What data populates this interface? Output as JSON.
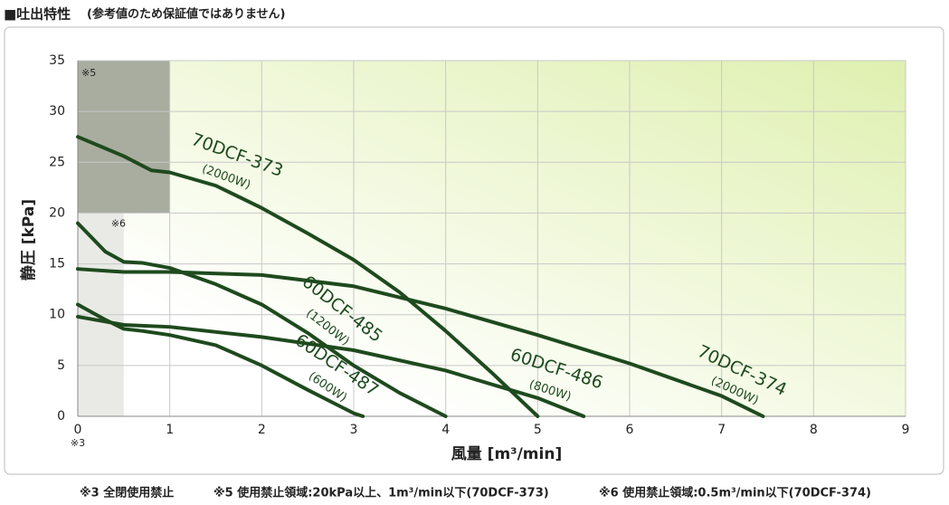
{
  "chart_data": {
    "type": "line",
    "title": "■吐出特性",
    "subtitle": "(参考値のため保証値ではありません)",
    "x_label": "風量 [m³/min]",
    "y_label": "静圧 [kPa]",
    "xlim": [
      0,
      9
    ],
    "xticks": [
      0,
      1,
      2,
      3,
      4,
      5,
      6,
      7,
      8,
      9
    ],
    "ylim": [
      0,
      35
    ],
    "yticks": [
      0,
      5,
      10,
      15,
      20,
      25,
      30,
      35
    ],
    "grid": true,
    "series": [
      {
        "name": "70DCF-373",
        "note": "(2000W)",
        "color": "#1e4a1e",
        "x": [
          0,
          0.5,
          0.8,
          1,
          1.5,
          2,
          2.5,
          3,
          3.5,
          4,
          4.5,
          5
        ],
        "values": [
          27.5,
          25.6,
          24.2,
          24,
          22.7,
          20.5,
          18,
          15.4,
          12.2,
          8.4,
          4.3,
          0
        ]
      },
      {
        "name": "60DCF-485",
        "note": "(1200W)",
        "color": "#1e4a1e",
        "x": [
          0,
          0.3,
          0.5,
          0.7,
          1,
          1.5,
          2,
          2.5,
          3,
          3.5,
          4
        ],
        "values": [
          19,
          16.2,
          15.2,
          15.1,
          14.6,
          13,
          11,
          8.2,
          5,
          2.3,
          0
        ]
      },
      {
        "name": "60DCF-487",
        "note": "(600W)",
        "color": "#1e4a1e",
        "x": [
          0,
          0.3,
          0.5,
          0.7,
          1,
          1.5,
          2,
          2.5,
          3,
          3.1
        ],
        "values": [
          11,
          9.5,
          8.6,
          8.4,
          8,
          7,
          5,
          2.6,
          0.3,
          0
        ]
      },
      {
        "name": "60DCF-486",
        "note": "(800W)",
        "color": "#1e4a1e",
        "x": [
          0,
          0.5,
          1,
          2,
          3,
          4,
          5,
          5.5
        ],
        "values": [
          9.8,
          9,
          8.8,
          7.8,
          6.5,
          4.5,
          1.8,
          0
        ]
      },
      {
        "name": "70DCF-374",
        "note": "(2000W)",
        "color": "#1e4a1e",
        "x": [
          0,
          0.5,
          1,
          2,
          3,
          4,
          5,
          6,
          7,
          7.45
        ],
        "values": [
          14.5,
          14.2,
          14.2,
          13.9,
          12.8,
          10.6,
          8,
          5.2,
          2,
          0
        ]
      }
    ],
    "regions": [
      {
        "label": "※5",
        "xlim": [
          0,
          1
        ],
        "ylim": [
          20,
          35
        ],
        "color": "#a9ad9f"
      },
      {
        "label": "※6",
        "xlim": [
          0,
          0.5
        ],
        "ylim": [
          0,
          20
        ],
        "color": "#e9eae5"
      }
    ],
    "origin_note": "※3",
    "footnotes": [
      "※3 全閉使用禁止",
      "※5 使用禁止領域:20kPa以上、1m³/min以下(70DCF-373)",
      "※6 使用禁止領域:0.5m³/min以下(70DCF-374)"
    ]
  }
}
